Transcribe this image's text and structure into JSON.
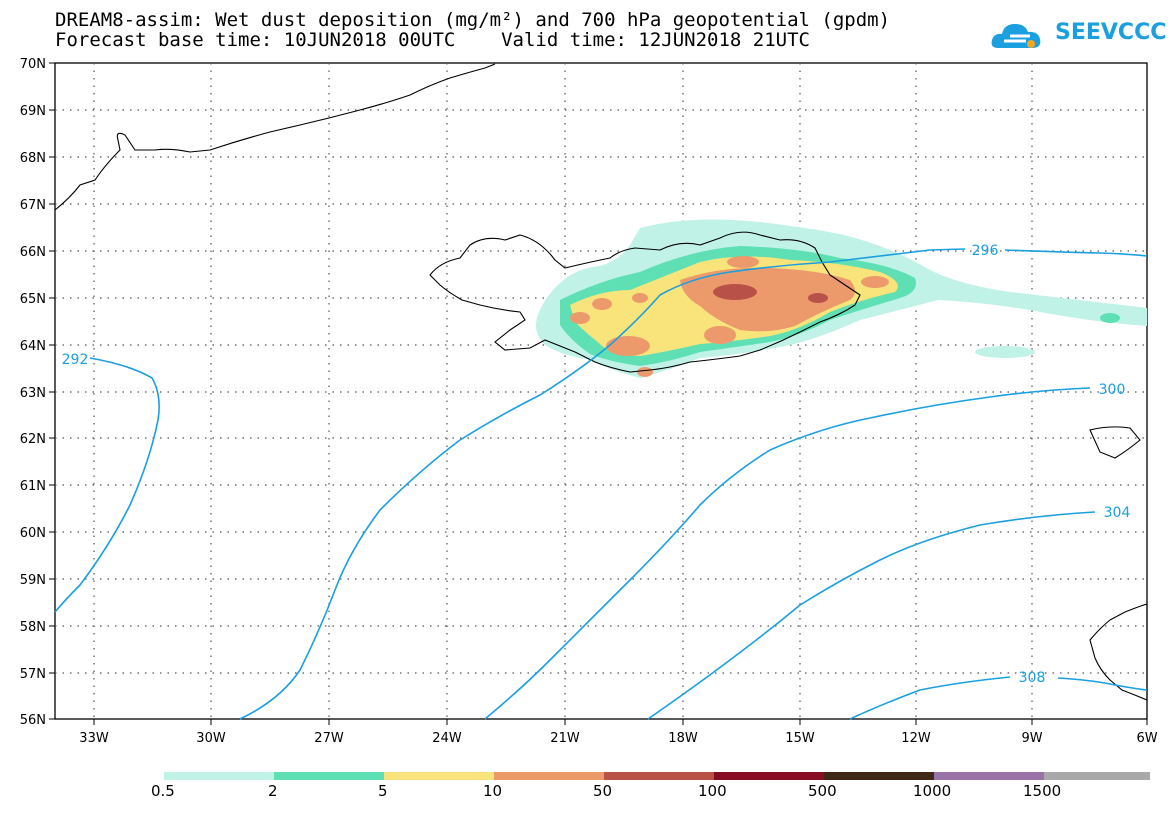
{
  "header": {
    "title_line1": "DREAM8-assim: Wet dust deposition (mg/m²) and 700 hPa geopotential (gpdm)",
    "title_line2": "Forecast base time: 10JUN2018 00UTC    Valid time: 12JUN2018 21UTC"
  },
  "logo": {
    "text": "SEEVCCC",
    "icon": "cloud-icon"
  },
  "axes": {
    "lat_labels": [
      "70N",
      "69N",
      "68N",
      "67N",
      "66N",
      "65N",
      "64N",
      "63N",
      "62N",
      "61N",
      "60N",
      "59N",
      "58N",
      "57N",
      "56N"
    ],
    "lon_labels": [
      "33W",
      "30W",
      "27W",
      "24W",
      "21W",
      "18W",
      "15W",
      "12W",
      "9W",
      "6W"
    ]
  },
  "contour_labels": [
    "292",
    "296",
    "300",
    "304",
    "308"
  ],
  "colorbar": {
    "colors": [
      "#c0f2e8",
      "#5ee0b4",
      "#f8e47a",
      "#ec9a6c",
      "#b85248",
      "#860c24",
      "#402818",
      "#9a74a8",
      "#a8a8a8"
    ],
    "labels": [
      "0.5",
      "2",
      "5",
      "10",
      "50",
      "100",
      "500",
      "1000",
      "1500"
    ]
  }
}
